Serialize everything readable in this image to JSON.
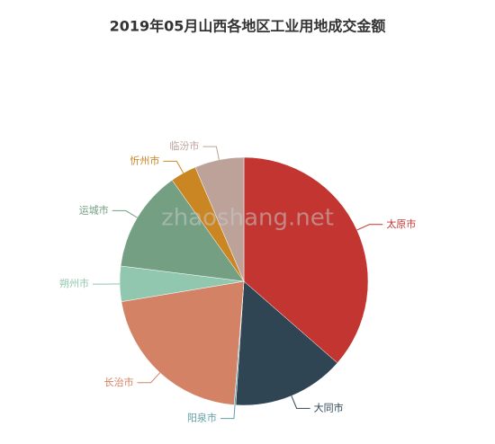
{
  "chart_data": {
    "type": "pie",
    "title": "2019年05月山西各地区工业用地成交金额",
    "watermark": "zhaoshang.net",
    "categories": [
      "太原市",
      "大同市",
      "阳泉市",
      "长治市",
      "朔州市",
      "运城市",
      "忻州市",
      "临汾市"
    ],
    "values": [
      36.4,
      14.6,
      0.2,
      21.1,
      4.6,
      13.2,
      3.4,
      6.4
    ],
    "colors": [
      "#c23531",
      "#2f4554",
      "#61a0a8",
      "#d48265",
      "#91c7ae",
      "#749f83",
      "#ca8622",
      "#bda29a"
    ]
  }
}
